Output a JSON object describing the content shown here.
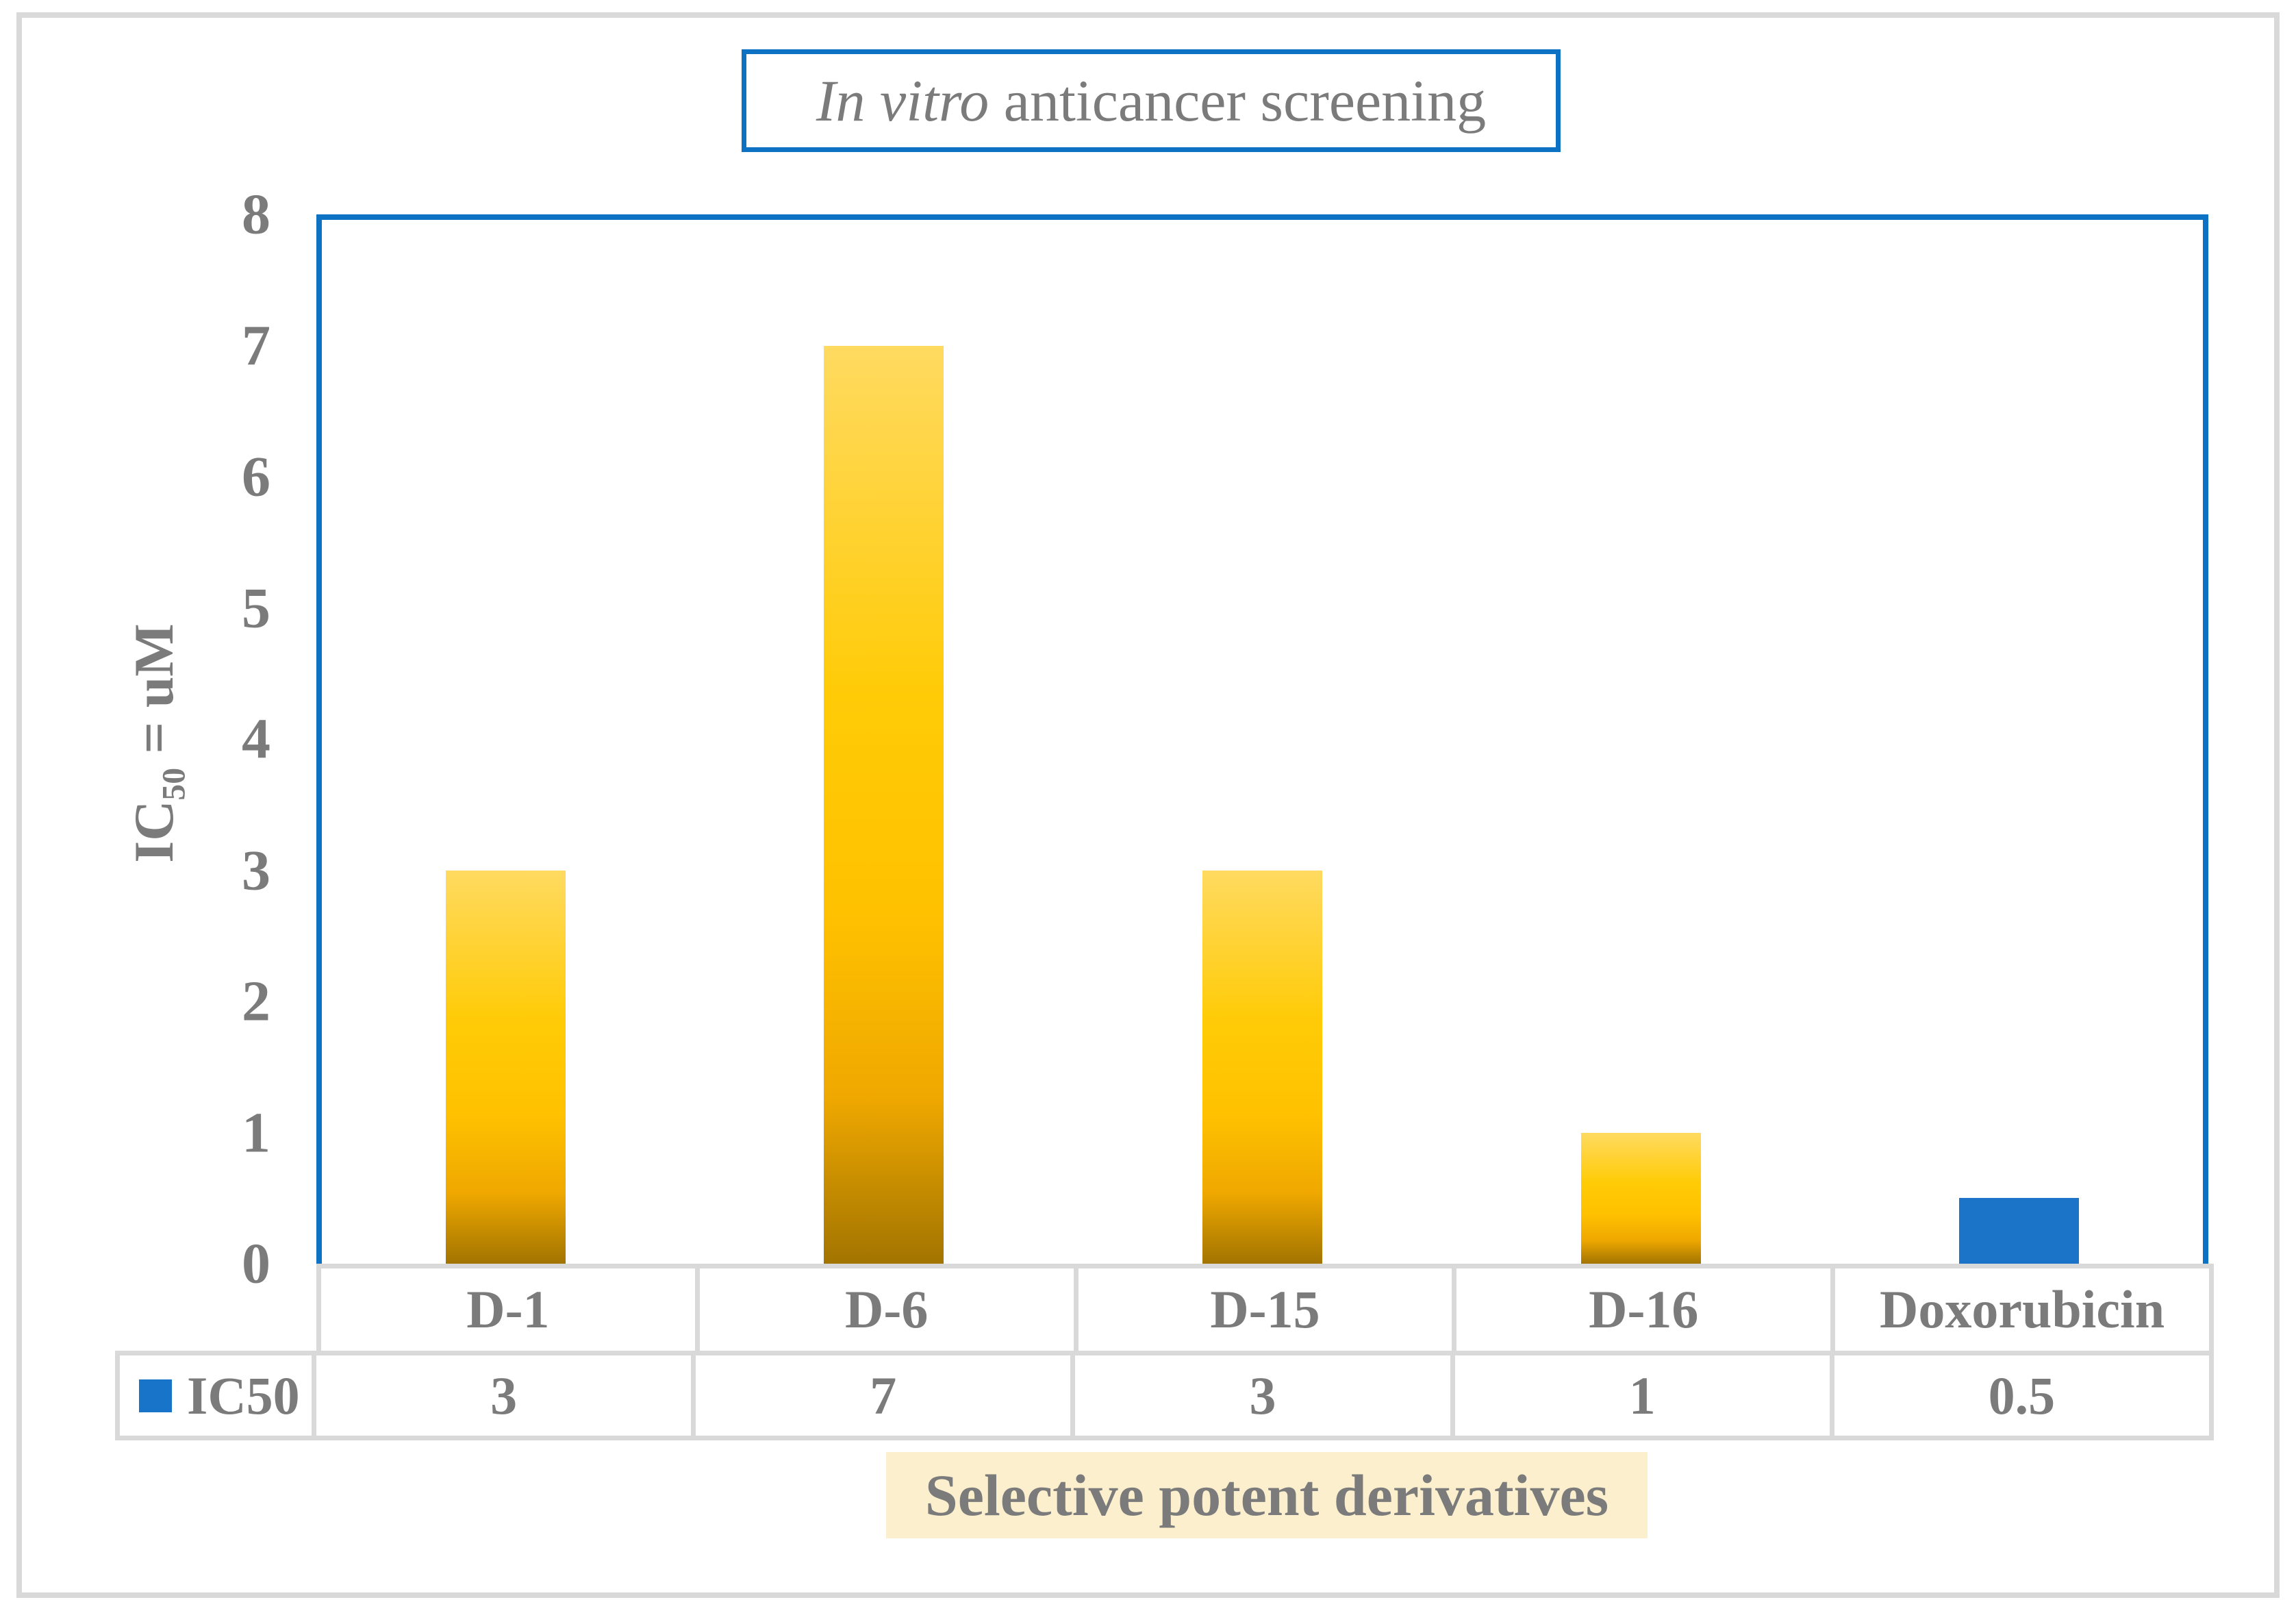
{
  "figure": {
    "title": {
      "italic": "In vitro",
      "rest": " anticancer screening"
    },
    "y_axis_title": {
      "prefix": "IC",
      "subscript": "50",
      "suffix": " = uM"
    },
    "x_axis_label": "Selective potent derivatives",
    "legend": {
      "label": "IC50"
    }
  },
  "chart_data": {
    "type": "bar",
    "title": "In vitro anticancer screening",
    "categories": [
      "D-1",
      "D-6",
      "D-15",
      "D-16",
      "Doxorubicin"
    ],
    "series": [
      {
        "name": "IC50",
        "values": [
          3,
          7,
          3,
          1,
          0.5
        ]
      }
    ],
    "ylabel": "IC50 = uM",
    "xlabel": "Selective potent derivatives",
    "ylim": [
      0,
      8
    ],
    "yticks": [
      0,
      1,
      2,
      3,
      4,
      5,
      6,
      7,
      8
    ],
    "grid": false,
    "legend_position": "data-table-left",
    "data_table_shown": true,
    "bar_style": {
      "derivative_gradient": [
        "#FFDA60",
        "#FFC100",
        "#A27400"
      ],
      "reference_bar_color": "#1B74C8",
      "reference_category": "Doxorubicin"
    }
  },
  "colors": {
    "plot_border": "#0E72C4",
    "title_border": "#0E72C4",
    "outer_border": "#D9D9D9",
    "table_border": "#D9D9D9",
    "text_gray": "#7B7B7B",
    "legend_swatch": "#1874C8",
    "x_label_background": "#FBEFCE",
    "d15_marker_line": "#9CC2E5"
  }
}
